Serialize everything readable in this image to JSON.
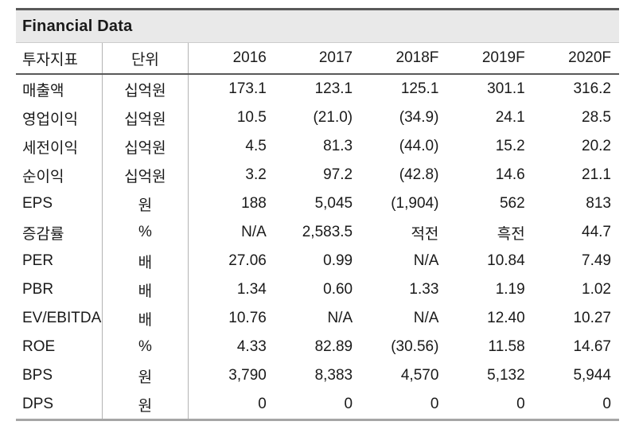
{
  "title": "Financial Data",
  "columns": [
    "투자지표",
    "단위",
    "2016",
    "2017",
    "2018F",
    "2019F",
    "2020F"
  ],
  "rows": [
    {
      "indicator": "매출액",
      "unit": "십억원",
      "values": [
        "173.1",
        "123.1",
        "125.1",
        "301.1",
        "316.2"
      ]
    },
    {
      "indicator": "영업이익",
      "unit": "십억원",
      "values": [
        "10.5",
        "(21.0)",
        "(34.9)",
        "24.1",
        "28.5"
      ]
    },
    {
      "indicator": "세전이익",
      "unit": "십억원",
      "values": [
        "4.5",
        "81.3",
        "(44.0)",
        "15.2",
        "20.2"
      ]
    },
    {
      "indicator": "순이익",
      "unit": "십억원",
      "values": [
        "3.2",
        "97.2",
        "(42.8)",
        "14.6",
        "21.1"
      ]
    },
    {
      "indicator": "EPS",
      "unit": "원",
      "values": [
        "188",
        "5,045",
        "(1,904)",
        "562",
        "813"
      ]
    },
    {
      "indicator": "증감률",
      "unit": "%",
      "values": [
        "N/A",
        "2,583.5",
        "적전",
        "흑전",
        "44.7"
      ]
    },
    {
      "indicator": "PER",
      "unit": "배",
      "values": [
        "27.06",
        "0.99",
        "N/A",
        "10.84",
        "7.49"
      ]
    },
    {
      "indicator": "PBR",
      "unit": "배",
      "values": [
        "1.34",
        "0.60",
        "1.33",
        "1.19",
        "1.02"
      ]
    },
    {
      "indicator": "EV/EBITDA",
      "unit": "배",
      "values": [
        "10.76",
        "N/A",
        "N/A",
        "12.40",
        "10.27"
      ]
    },
    {
      "indicator": "ROE",
      "unit": "%",
      "values": [
        "4.33",
        "82.89",
        "(30.56)",
        "11.58",
        "14.67"
      ]
    },
    {
      "indicator": "BPS",
      "unit": "원",
      "values": [
        "3,790",
        "8,383",
        "4,570",
        "5,132",
        "5,944"
      ]
    },
    {
      "indicator": "DPS",
      "unit": "원",
      "values": [
        "0",
        "0",
        "0",
        "0",
        "0"
      ]
    }
  ],
  "colors": {
    "title_band_bg": "#e9e9e9",
    "top_rule": "#595959",
    "header_rule": "#595959",
    "bottom_rule": "#a6a6a6",
    "column_divider": "#b3b3b3",
    "text": "#1a1a1a"
  }
}
